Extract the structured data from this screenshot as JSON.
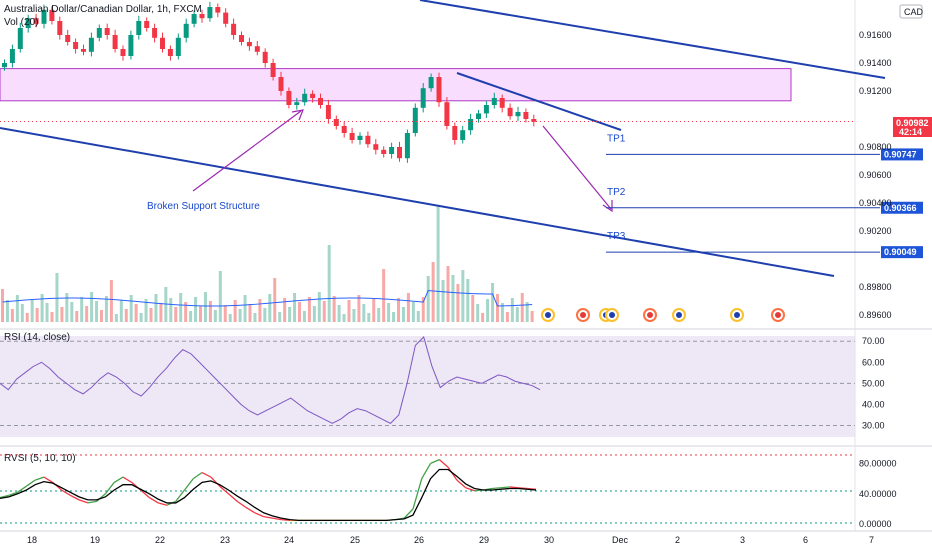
{
  "chart_data": {
    "type": "candlestick",
    "symbol_title": "Australian Dollar/Canadian Dollar, 1h, FXCM",
    "currency_badge": "CAD",
    "volume_label": "Vol (20)",
    "price_axis": {
      "ticks": [
        "0.91600",
        "0.91400",
        "0.91200",
        "0.90800",
        "0.90600",
        "0.90400",
        "0.90200",
        "0.89800",
        "0.89600"
      ],
      "range": [
        0.8955,
        0.9185
      ]
    },
    "current_price": {
      "label": "0.90982",
      "countdown": "42:14",
      "value": 0.90982,
      "color": "#f23645"
    },
    "targets": [
      {
        "name": "TP1",
        "value": 0.90747,
        "label": "0.90747"
      },
      {
        "name": "TP2",
        "value": 0.90366,
        "label": "0.90366"
      },
      {
        "name": "TP3",
        "value": 0.90049,
        "label": "0.90049"
      }
    ],
    "annotations": {
      "broken_support": "Broken Support Structure"
    },
    "supply_zone": {
      "top": 0.9136,
      "bottom": 0.9113,
      "color": "#e040fb"
    },
    "close_series": [
      0.914,
      0.915,
      0.9165,
      0.9172,
      0.9168,
      0.9178,
      0.917,
      0.916,
      0.9155,
      0.915,
      0.9148,
      0.9158,
      0.9165,
      0.916,
      0.915,
      0.9145,
      0.916,
      0.917,
      0.9165,
      0.9158,
      0.915,
      0.9145,
      0.9158,
      0.9168,
      0.9175,
      0.9172,
      0.918,
      0.9176,
      0.9168,
      0.916,
      0.9155,
      0.9152,
      0.9148,
      0.914,
      0.913,
      0.912,
      0.911,
      0.9112,
      0.9118,
      0.9115,
      0.911,
      0.91,
      0.9095,
      0.909,
      0.9085,
      0.9088,
      0.9082,
      0.9078,
      0.9075,
      0.908,
      0.9072,
      0.909,
      0.9108,
      0.9122,
      0.913,
      0.9112,
      0.9095,
      0.9085,
      0.9092,
      0.91,
      0.9104,
      0.911,
      0.9115,
      0.9108,
      0.9102,
      0.9105,
      0.91,
      0.9098
    ],
    "volume_scale": "relative",
    "date_axis": [
      "18",
      "19",
      "22",
      "23",
      "24",
      "25",
      "26",
      "29",
      "30",
      "Dec",
      "2",
      "3",
      "6",
      "7"
    ],
    "rsi": {
      "label": "RSI (14, close)",
      "ticks": [
        "70.00",
        "60.00",
        "50.00",
        "40.00",
        "30.00"
      ],
      "range": [
        25,
        72
      ],
      "values": [
        50,
        47,
        52,
        55,
        58,
        60,
        57,
        53,
        50,
        47,
        45,
        48,
        52,
        55,
        53,
        50,
        46,
        44,
        48,
        53,
        57,
        62,
        66,
        64,
        60,
        56,
        52,
        48,
        44,
        40,
        37,
        35,
        37,
        39,
        41,
        43,
        40,
        37,
        35,
        33,
        31,
        33,
        36,
        38,
        37,
        35,
        33,
        31,
        35,
        50,
        68,
        72,
        58,
        48,
        51,
        53,
        52,
        51,
        50,
        52,
        54,
        53,
        51,
        50,
        49,
        47
      ],
      "color": "#7e57c2"
    },
    "rvsi": {
      "label": "RVSI (5, 10, 10)",
      "ticks": [
        "80.00000",
        "40.00000",
        "0.00000"
      ],
      "range": [
        -5,
        95
      ],
      "fast": [
        35,
        38,
        42,
        50,
        58,
        62,
        55,
        45,
        38,
        32,
        28,
        30,
        40,
        55,
        62,
        55,
        45,
        35,
        28,
        25,
        30,
        45,
        60,
        68,
        62,
        50,
        40,
        30,
        22,
        15,
        10,
        8,
        6,
        5,
        5,
        5,
        5,
        5,
        5,
        5,
        5,
        5,
        5,
        5,
        5,
        6,
        8,
        20,
        60,
        80,
        85,
        75,
        58,
        48,
        44,
        45,
        47,
        48,
        49,
        48,
        47,
        46
      ],
      "slow": [
        34,
        36,
        40,
        45,
        52,
        56,
        54,
        48,
        42,
        36,
        32,
        32,
        36,
        45,
        52,
        52,
        46,
        40,
        33,
        28,
        28,
        35,
        46,
        55,
        57,
        52,
        45,
        37,
        30,
        22,
        15,
        11,
        8,
        6,
        5,
        5,
        5,
        5,
        5,
        5,
        5,
        5,
        5,
        5,
        5,
        6,
        7,
        12,
        35,
        60,
        72,
        72,
        63,
        53,
        47,
        45,
        45,
        46,
        47,
        47,
        46,
        45
      ]
    }
  }
}
